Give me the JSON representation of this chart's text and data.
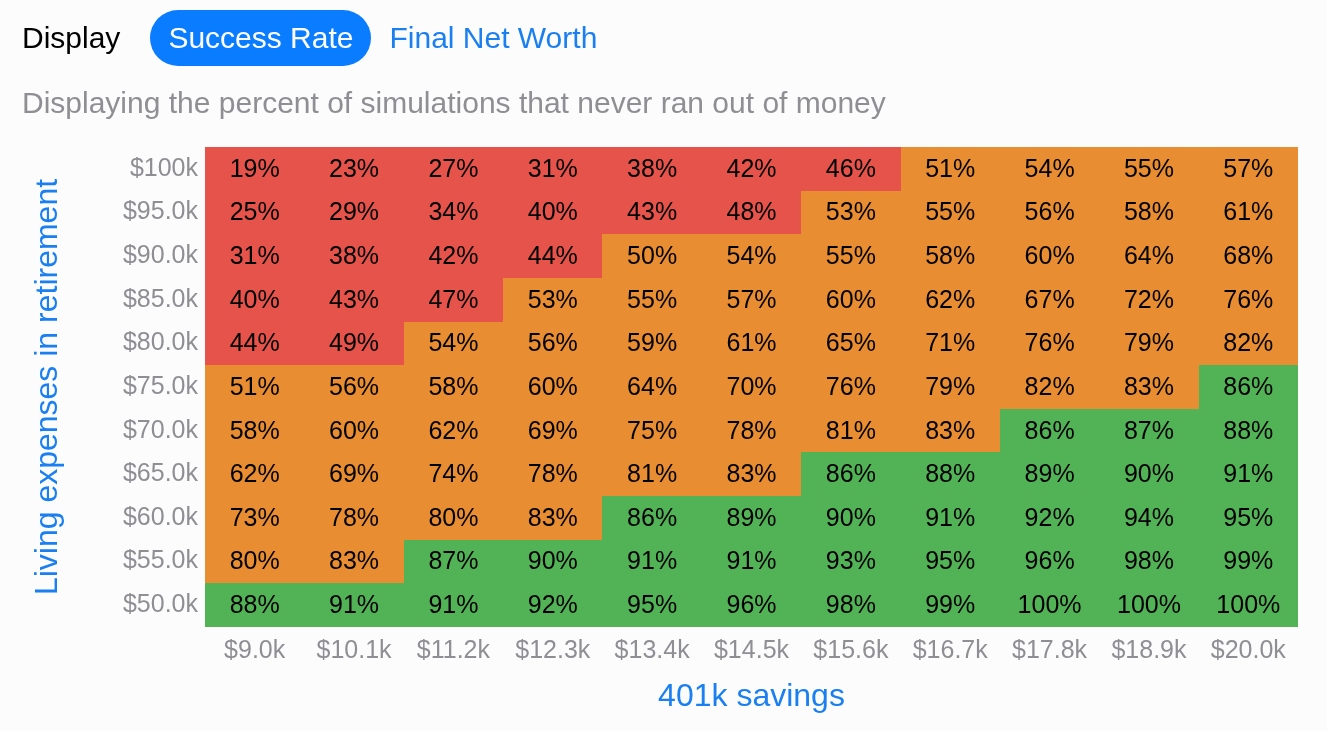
{
  "chart_data": {
    "type": "heatmap",
    "subtitle": "Displaying the percent of simulations that never ran out of money",
    "annotations": [
      "Display",
      "Success Rate",
      "Final Net Worth"
    ],
    "xlabel": "401k savings",
    "ylabel": "Living expenses in retirement",
    "categories": [
      "$9.0k",
      "$10.1k",
      "$11.2k",
      "$12.3k",
      "$13.4k",
      "$14.5k",
      "$15.6k",
      "$16.7k",
      "$17.8k",
      "$18.9k",
      "$20.0k"
    ],
    "y_categories": [
      "$100k",
      "$95.0k",
      "$90.0k",
      "$85.0k",
      "$80.0k",
      "$75.0k",
      "$70.0k",
      "$65.0k",
      "$60.0k",
      "$55.0k",
      "$50.0k"
    ],
    "cells": [
      [
        19,
        23,
        27,
        31,
        38,
        42,
        46,
        51,
        54,
        55,
        57
      ],
      [
        25,
        29,
        34,
        40,
        43,
        48,
        53,
        55,
        56,
        58,
        61
      ],
      [
        31,
        38,
        42,
        44,
        50,
        54,
        55,
        58,
        60,
        64,
        68
      ],
      [
        40,
        43,
        47,
        53,
        55,
        57,
        60,
        62,
        67,
        72,
        76
      ],
      [
        44,
        49,
        54,
        56,
        59,
        61,
        65,
        71,
        76,
        79,
        82
      ],
      [
        51,
        56,
        58,
        60,
        64,
        70,
        76,
        79,
        82,
        83,
        86
      ],
      [
        58,
        60,
        62,
        69,
        75,
        78,
        81,
        83,
        86,
        87,
        88
      ],
      [
        62,
        69,
        74,
        78,
        81,
        83,
        86,
        88,
        89,
        90,
        91
      ],
      [
        73,
        78,
        80,
        83,
        86,
        89,
        90,
        91,
        92,
        94,
        95
      ],
      [
        80,
        83,
        87,
        90,
        91,
        91,
        93,
        95,
        96,
        98,
        99
      ],
      [
        88,
        91,
        91,
        92,
        95,
        96,
        98,
        99,
        100,
        100,
        100
      ]
    ],
    "cell_labels": [
      [
        "19%",
        "23%",
        "27%",
        "31%",
        "38%",
        "42%",
        "46%",
        "51%",
        "54%",
        "55%",
        "57%"
      ],
      [
        "25%",
        "29%",
        "34%",
        "40%",
        "43%",
        "48%",
        "53%",
        "55%",
        "56%",
        "58%",
        "61%"
      ],
      [
        "31%",
        "38%",
        "42%",
        "44%",
        "50%",
        "54%",
        "55%",
        "58%",
        "60%",
        "64%",
        "68%"
      ],
      [
        "40%",
        "43%",
        "47%",
        "53%",
        "55%",
        "57%",
        "60%",
        "62%",
        "67%",
        "72%",
        "76%"
      ],
      [
        "44%",
        "49%",
        "54%",
        "56%",
        "59%",
        "61%",
        "65%",
        "71%",
        "76%",
        "79%",
        "82%"
      ],
      [
        "51%",
        "56%",
        "58%",
        "60%",
        "64%",
        "70%",
        "76%",
        "79%",
        "82%",
        "83%",
        "86%"
      ],
      [
        "58%",
        "60%",
        "62%",
        "69%",
        "75%",
        "78%",
        "81%",
        "83%",
        "86%",
        "87%",
        "88%"
      ],
      [
        "62%",
        "69%",
        "74%",
        "78%",
        "81%",
        "83%",
        "86%",
        "88%",
        "89%",
        "90%",
        "91%"
      ],
      [
        "73%",
        "78%",
        "80%",
        "83%",
        "86%",
        "89%",
        "90%",
        "91%",
        "92%",
        "94%",
        "95%"
      ],
      [
        "80%",
        "83%",
        "87%",
        "90%",
        "91%",
        "91%",
        "93%",
        "95%",
        "96%",
        "98%",
        "99%"
      ],
      [
        "88%",
        "91%",
        "91%",
        "92%",
        "95%",
        "96%",
        "98%",
        "99%",
        "100%",
        "100%",
        "100%"
      ]
    ],
    "colors": [
      [
        "#e5534b",
        "#e5534b",
        "#e5534b",
        "#e5534b",
        "#e5534b",
        "#e5534b",
        "#e5534b",
        "#e88d31",
        "#e88d31",
        "#e88d31",
        "#e88d31"
      ],
      [
        "#e5534b",
        "#e5534b",
        "#e5534b",
        "#e5534b",
        "#e5534b",
        "#e5534b",
        "#e88d31",
        "#e88d31",
        "#e88d31",
        "#e88d31",
        "#e88d31"
      ],
      [
        "#e5534b",
        "#e5534b",
        "#e5534b",
        "#e5534b",
        "#e88d31",
        "#e88d31",
        "#e88d31",
        "#e88d31",
        "#e88d31",
        "#e88d31",
        "#e88d31"
      ],
      [
        "#e5534b",
        "#e5534b",
        "#e5534b",
        "#e88d31",
        "#e88d31",
        "#e88d31",
        "#e88d31",
        "#e88d31",
        "#e88d31",
        "#e88d31",
        "#e88d31"
      ],
      [
        "#e5534b",
        "#e5534b",
        "#e88d31",
        "#e88d31",
        "#e88d31",
        "#e88d31",
        "#e88d31",
        "#e88d31",
        "#e88d31",
        "#e88d31",
        "#e88d31"
      ],
      [
        "#e88d31",
        "#e88d31",
        "#e88d31",
        "#e88d31",
        "#e88d31",
        "#e88d31",
        "#e88d31",
        "#e88d31",
        "#e88d31",
        "#e88d31",
        "#52b356"
      ],
      [
        "#e88d31",
        "#e88d31",
        "#e88d31",
        "#e88d31",
        "#e88d31",
        "#e88d31",
        "#e88d31",
        "#e88d31",
        "#52b356",
        "#52b356",
        "#52b356"
      ],
      [
        "#e88d31",
        "#e88d31",
        "#e88d31",
        "#e88d31",
        "#e88d31",
        "#e88d31",
        "#52b356",
        "#52b356",
        "#52b356",
        "#52b356",
        "#52b356"
      ],
      [
        "#e88d31",
        "#e88d31",
        "#e88d31",
        "#e88d31",
        "#52b356",
        "#52b356",
        "#52b356",
        "#52b356",
        "#52b356",
        "#52b356",
        "#52b356"
      ],
      [
        "#e88d31",
        "#e88d31",
        "#52b356",
        "#52b356",
        "#52b356",
        "#52b356",
        "#52b356",
        "#52b356",
        "#52b356",
        "#52b356",
        "#52b356"
      ],
      [
        "#52b356",
        "#52b356",
        "#52b356",
        "#52b356",
        "#52b356",
        "#52b356",
        "#52b356",
        "#52b356",
        "#52b356",
        "#52b356",
        "#52b356"
      ]
    ]
  }
}
